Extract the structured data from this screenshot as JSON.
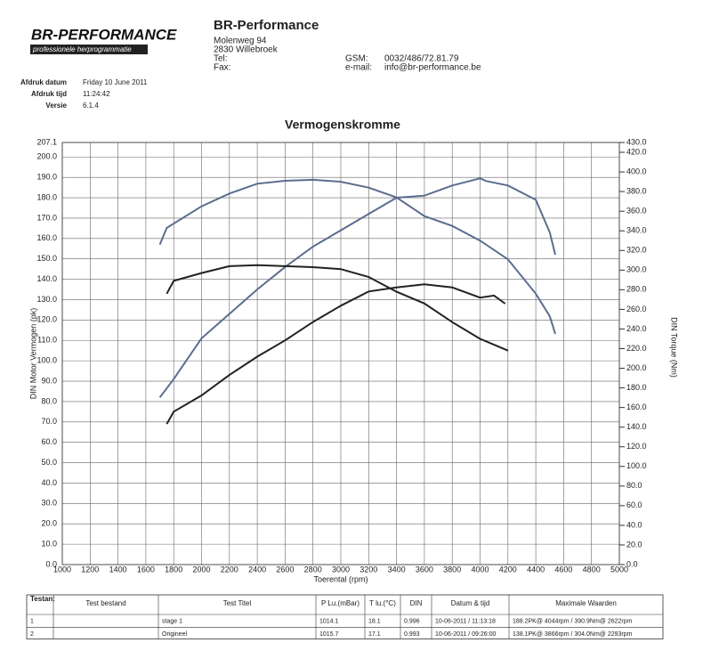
{
  "header": {
    "logo": "BR-PERFORMANCE",
    "logo_tagline": "professionele herprogrammatie",
    "company": "BR-Performance",
    "street": "Molenweg 94",
    "city": "2830 Willebroek",
    "tel_label": "Tel:",
    "fax_label": "Fax:",
    "gsm_label": "GSM:",
    "gsm": "0032/486/72.81.79",
    "email_label": "e-mail:",
    "email": "info@br-performance.be"
  },
  "info": [
    {
      "label": "Afdruk datum",
      "value": "Friday 10 June 2011"
    },
    {
      "label": "Afdruk tijd",
      "value": "11:24:42"
    },
    {
      "label": "Versie",
      "value": "6.1.4"
    }
  ],
  "chart_data": {
    "type": "line",
    "title": "Vermogenskromme",
    "x_label": "Toerental (rpm)",
    "y_label": "DIN Motor Vermogen (pk)",
    "y2_label": "DIN Torque (Nm)",
    "grid": true,
    "xlim": [
      1000,
      5000
    ],
    "xticks": [
      1000,
      1200,
      1400,
      1600,
      1800,
      2000,
      2200,
      2400,
      2600,
      2800,
      3000,
      3200,
      3400,
      3600,
      3800,
      4000,
      4200,
      4400,
      4600,
      4800,
      5000
    ],
    "ylim": [
      0,
      207.1
    ],
    "yticks": [
      {
        "value": 0,
        "label": "0.0"
      },
      {
        "value": 10,
        "label": "10.0"
      },
      {
        "value": 20,
        "label": "20.0"
      },
      {
        "value": 30,
        "label": "30.0"
      },
      {
        "value": 40,
        "label": "40.0"
      },
      {
        "value": 50,
        "label": "50.0"
      },
      {
        "value": 60,
        "label": "60.0"
      },
      {
        "value": 70,
        "label": "70.0"
      },
      {
        "value": 80,
        "label": "80.0"
      },
      {
        "value": 90,
        "label": "90.0"
      },
      {
        "value": 100,
        "label": "100.0"
      },
      {
        "value": 110,
        "label": "110.0"
      },
      {
        "value": 120,
        "label": "120.0"
      },
      {
        "value": 130,
        "label": "130.0"
      },
      {
        "value": 140,
        "label": "140.0"
      },
      {
        "value": 150,
        "label": "150.0"
      },
      {
        "value": 160,
        "label": "160.0"
      },
      {
        "value": 170,
        "label": "170.0"
      },
      {
        "value": 180,
        "label": "180.0"
      },
      {
        "value": 190,
        "label": "190.0"
      },
      {
        "value": 200,
        "label": "200.0"
      },
      207.1
    ],
    "y2lim": [
      0,
      430
    ],
    "y2ticks": [
      {
        "value": 0,
        "label": "0.0"
      },
      {
        "value": 20,
        "label": "20.0"
      },
      {
        "value": 40,
        "label": "40.0"
      },
      {
        "value": 60,
        "label": "60.0"
      },
      {
        "value": 80,
        "label": "80.0"
      },
      {
        "value": 100,
        "label": "100.0"
      },
      {
        "value": 120,
        "label": "120.0"
      },
      {
        "value": 140,
        "label": "140.0"
      },
      {
        "value": 160,
        "label": "160.0"
      },
      {
        "value": 180,
        "label": "180.0"
      },
      {
        "value": 200,
        "label": "200.0"
      },
      {
        "value": 220,
        "label": "220.0"
      },
      {
        "value": 240,
        "label": "240.0"
      },
      {
        "value": 260,
        "label": "260.0"
      },
      {
        "value": 280,
        "label": "280.0"
      },
      {
        "value": 300,
        "label": "300.0"
      },
      {
        "value": 320,
        "label": "320.0"
      },
      {
        "value": 340,
        "label": "340.0"
      },
      {
        "value": 360,
        "label": "360.0"
      },
      {
        "value": 380,
        "label": "380.0"
      },
      {
        "value": 400,
        "label": "400.0"
      },
      {
        "value": 420,
        "label": "420.0"
      },
      {
        "value": 430,
        "label": "430.0"
      }
    ],
    "series": [
      {
        "color": "#5b6d8e",
        "x": [
          1700,
          1800,
          2000,
          2200,
          2400,
          2600,
          2800,
          3000,
          3200,
          3400,
          3600,
          3800,
          4000,
          4044,
          4200,
          4400,
          4500,
          4540
        ],
        "values": [
          82,
          91,
          111,
          123,
          135,
          146,
          156,
          164,
          172,
          180,
          181,
          186,
          189.5,
          188.2,
          186,
          179,
          163,
          152
        ]
      },
      {
        "color": "#5b6d8e",
        "axis": "y2",
        "x": [
          1700,
          1750,
          2000,
          2200,
          2400,
          2600,
          2800,
          3000,
          3200,
          3400,
          3600,
          3800,
          4000,
          4200,
          4400,
          4500,
          4540
        ],
        "values": [
          326,
          343,
          365,
          378,
          388,
          391,
          392,
          390,
          384,
          374,
          355,
          345,
          330,
          311,
          276,
          253,
          235
        ]
      },
      {
        "color": "#222222",
        "x": [
          1750,
          1800,
          2000,
          2200,
          2400,
          2600,
          2800,
          3000,
          3200,
          3400,
          3600,
          3800,
          4000,
          4100,
          4180
        ],
        "values": [
          69,
          75,
          83,
          93,
          102,
          110,
          119,
          127,
          134,
          136,
          137.5,
          136,
          131,
          132,
          128
        ]
      },
      {
        "color": "#222222",
        "axis": "y2",
        "x": [
          1750,
          1800,
          2000,
          2200,
          2400,
          2600,
          2800,
          3000,
          3200,
          3400,
          3600,
          3800,
          4000,
          4200
        ],
        "values": [
          276,
          289,
          297,
          304,
          305,
          304,
          303,
          301,
          293,
          278,
          266,
          247,
          230,
          218
        ]
      }
    ]
  },
  "table": {
    "caption": "Testan:",
    "headers": [
      "Test bestand",
      "Test Titel",
      "P Lu.(mBar)",
      "T lu.(°C)",
      "DIN",
      "Datum & tijd",
      "Maximale Waarden"
    ],
    "rows": [
      {
        "no": "1",
        "title": "stage 1",
        "p": "1014.1",
        "t": "18.1",
        "din": "0.996",
        "date": "10-06-2011 / 11:13:18",
        "max": "188.2PK@ 4044rpm / 390.9Nm@ 2622rpm"
      },
      {
        "no": "2",
        "title": "Origineel",
        "p": "1015.7",
        "t": "17.1",
        "din": "0.993",
        "date": "10-06-2011 / 09:26:00",
        "max": "138.1PK@ 3866rpm / 304.0Nm@ 2293rpm"
      }
    ]
  }
}
